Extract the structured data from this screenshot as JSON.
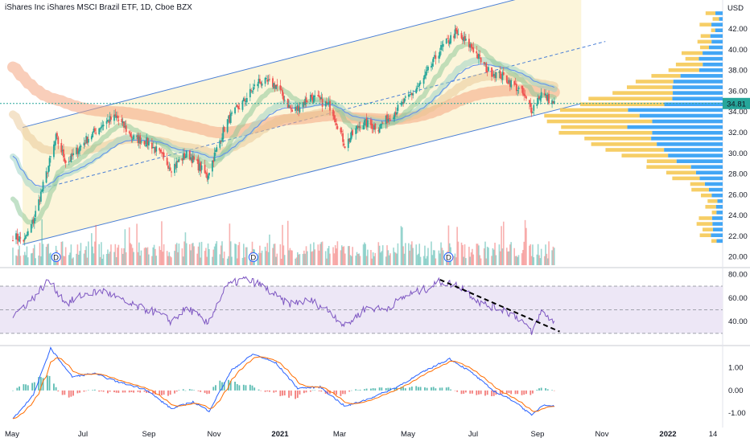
{
  "header": {
    "title": "iShares Inc iShares MSCI Brazil ETF, 1D, Cboe BZX",
    "currency": "USD"
  },
  "colors": {
    "up": "#26a69a",
    "down": "#ef5350",
    "channel_line": "#4a7fd6",
    "channel_fill": "#fbf3d4",
    "rsi_line": "#7e57c2",
    "rsi_band": "#ede7f6",
    "macd_line": "#2962ff",
    "signal_line": "#ff6d00",
    "vp_buy": "#2196f3",
    "vp_sell": "#f5c64b",
    "price_marker": "#26a69a"
  },
  "chart_data": [
    {
      "type": "candlestick",
      "name": "price",
      "y_axis_ticks": [
        "42.00",
        "40.00",
        "38.00",
        "36.00",
        "34.00",
        "32.00",
        "30.00",
        "28.00",
        "26.00",
        "24.00",
        "22.00",
        "20.00"
      ],
      "ylim": [
        19.5,
        44.5
      ],
      "x_axis_ticks": [
        "May",
        "Jul",
        "Sep",
        "Nov",
        "2021",
        "Mar",
        "May",
        "Jul",
        "Sep",
        "Nov",
        "2022",
        "14"
      ],
      "last_price": "34.81",
      "dividend_marker": "D",
      "anchors": [
        [
          "2020-05-01",
          22.0
        ],
        [
          "2020-05-12",
          21.6
        ],
        [
          "2020-05-20",
          23.5
        ],
        [
          "2020-06-01",
          28.0
        ],
        [
          "2020-06-10",
          31.5
        ],
        [
          "2020-06-20",
          29.0
        ],
        [
          "2020-07-05",
          31.0
        ],
        [
          "2020-07-25",
          33.0
        ],
        [
          "2020-08-05",
          33.5
        ],
        [
          "2020-08-20",
          31.5
        ],
        [
          "2020-09-05",
          31.0
        ],
        [
          "2020-09-25",
          28.6
        ],
        [
          "2020-10-10",
          30.0
        ],
        [
          "2020-10-28",
          27.8
        ],
        [
          "2020-11-15",
          33.0
        ],
        [
          "2020-12-01",
          35.0
        ],
        [
          "2020-12-15",
          37.0
        ],
        [
          "2020-12-31",
          36.6
        ],
        [
          "2021-01-15",
          34.0
        ],
        [
          "2021-02-01",
          35.5
        ],
        [
          "2021-02-20",
          34.5
        ],
        [
          "2021-03-05",
          30.8
        ],
        [
          "2021-03-20",
          33.0
        ],
        [
          "2021-04-05",
          32.5
        ],
        [
          "2021-04-25",
          34.5
        ],
        [
          "2021-05-15",
          36.8
        ],
        [
          "2021-06-01",
          40.0
        ],
        [
          "2021-06-15",
          41.6
        ],
        [
          "2021-07-01",
          40.2
        ],
        [
          "2021-07-15",
          38.0
        ],
        [
          "2021-07-30",
          37.4
        ],
        [
          "2021-08-15",
          36.0
        ],
        [
          "2021-08-25",
          34.2
        ],
        [
          "2021-09-03",
          35.8
        ],
        [
          "2021-09-15",
          34.8
        ]
      ],
      "ema_ribbon_start": [
        "2020-05-01",
        38.5
      ],
      "dividends": [
        "2020-06-10",
        "2020-12-10",
        "2021-06-09"
      ]
    },
    {
      "type": "bar",
      "name": "volume"
    },
    {
      "type": "line",
      "name": "RSI",
      "y_axis_ticks": [
        "80.00",
        "60.00",
        "40.00"
      ],
      "ylim": [
        21,
        83
      ],
      "levels": [
        70,
        50,
        30
      ],
      "anchors": [
        [
          "2020-05-01",
          45
        ],
        [
          "2020-05-20",
          60
        ],
        [
          "2020-06-03",
          75
        ],
        [
          "2020-06-20",
          55
        ],
        [
          "2020-07-05",
          63
        ],
        [
          "2020-07-25",
          66
        ],
        [
          "2020-08-15",
          55
        ],
        [
          "2020-09-10",
          48
        ],
        [
          "2020-09-25",
          40
        ],
        [
          "2020-10-10",
          52
        ],
        [
          "2020-10-28",
          38
        ],
        [
          "2020-11-15",
          70
        ],
        [
          "2020-12-01",
          76
        ],
        [
          "2020-12-15",
          72
        ],
        [
          "2021-01-10",
          55
        ],
        [
          "2021-02-01",
          58
        ],
        [
          "2021-02-20",
          48
        ],
        [
          "2021-03-05",
          36
        ],
        [
          "2021-03-25",
          52
        ],
        [
          "2021-04-10",
          50
        ],
        [
          "2021-05-01",
          62
        ],
        [
          "2021-05-20",
          68
        ],
        [
          "2021-06-01",
          74
        ],
        [
          "2021-06-20",
          70
        ],
        [
          "2021-07-10",
          55
        ],
        [
          "2021-07-30",
          50
        ],
        [
          "2021-08-15",
          42
        ],
        [
          "2021-08-25",
          30
        ],
        [
          "2021-09-03",
          48
        ],
        [
          "2021-09-15",
          40
        ]
      ],
      "trendline": [
        [
          "2021-06-01",
          75.5
        ],
        [
          "2021-09-20",
          31.5
        ]
      ]
    },
    {
      "type": "line",
      "name": "MACD",
      "y_axis_ticks": [
        "1.00",
        "0.00",
        "-1.00"
      ],
      "ylim": [
        -1.45,
        1.9
      ],
      "anchors": [
        [
          "2020-05-01",
          -1.25
        ],
        [
          "2020-05-20",
          -0.2
        ],
        [
          "2020-06-05",
          1.85
        ],
        [
          "2020-06-25",
          0.6
        ],
        [
          "2020-07-15",
          0.75
        ],
        [
          "2020-08-05",
          0.4
        ],
        [
          "2020-09-01",
          0.05
        ],
        [
          "2020-09-25",
          -0.8
        ],
        [
          "2020-10-15",
          -0.5
        ],
        [
          "2020-10-30",
          -0.9
        ],
        [
          "2020-11-20",
          0.9
        ],
        [
          "2020-12-10",
          1.6
        ],
        [
          "2020-12-31",
          1.2
        ],
        [
          "2021-01-20",
          0.1
        ],
        [
          "2021-02-10",
          0.15
        ],
        [
          "2021-03-05",
          -0.7
        ],
        [
          "2021-03-25",
          -0.4
        ],
        [
          "2021-04-20",
          0.1
        ],
        [
          "2021-05-20",
          0.9
        ],
        [
          "2021-06-10",
          1.4
        ],
        [
          "2021-06-30",
          0.8
        ],
        [
          "2021-07-20",
          0.0
        ],
        [
          "2021-08-10",
          -0.5
        ],
        [
          "2021-08-25",
          -1.1
        ],
        [
          "2021-09-05",
          -0.6
        ],
        [
          "2021-09-20",
          -0.75
        ]
      ]
    }
  ]
}
